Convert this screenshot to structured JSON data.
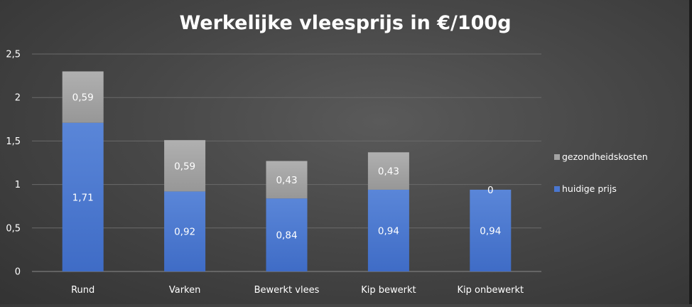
{
  "colors": {
    "huidige_prijs": "#4a77d0",
    "gezondheidskosten": "#a3a3a3",
    "gridline": "#6a6a6a",
    "text": "#ffffff"
  },
  "chart_data": {
    "type": "bar",
    "stacked": true,
    "title": "Werkelijke vleesprijs in €/100g",
    "xlabel": "",
    "ylabel": "",
    "ylim": [
      0,
      2.5
    ],
    "yticks": [
      "0",
      "0,5",
      "1",
      "1,5",
      "2",
      "2,5"
    ],
    "yticks_values": [
      0,
      0.5,
      1,
      1.5,
      2,
      2.5
    ],
    "grid": true,
    "legend_position": "right",
    "categories": [
      "Rund",
      "Varken",
      "Bewerkt vlees",
      "Kip bewerkt",
      "Kip onbewerkt"
    ],
    "series": [
      {
        "name": "huidige prijs",
        "values": [
          1.71,
          0.92,
          0.84,
          0.94,
          0.94
        ],
        "labels": [
          "1,71",
          "0,92",
          "0,84",
          "0,94",
          "0,94"
        ],
        "color": "#4a77d0"
      },
      {
        "name": "gezondheidskosten",
        "values": [
          0.59,
          0.59,
          0.43,
          0.43,
          0
        ],
        "labels": [
          "0,59",
          "0,59",
          "0,43",
          "0,43",
          "0"
        ],
        "color": "#a3a3a3"
      }
    ],
    "legend": [
      {
        "name": "gezondheidskosten",
        "color": "#a3a3a3"
      },
      {
        "name": "huidige prijs",
        "color": "#4a77d0"
      }
    ]
  }
}
